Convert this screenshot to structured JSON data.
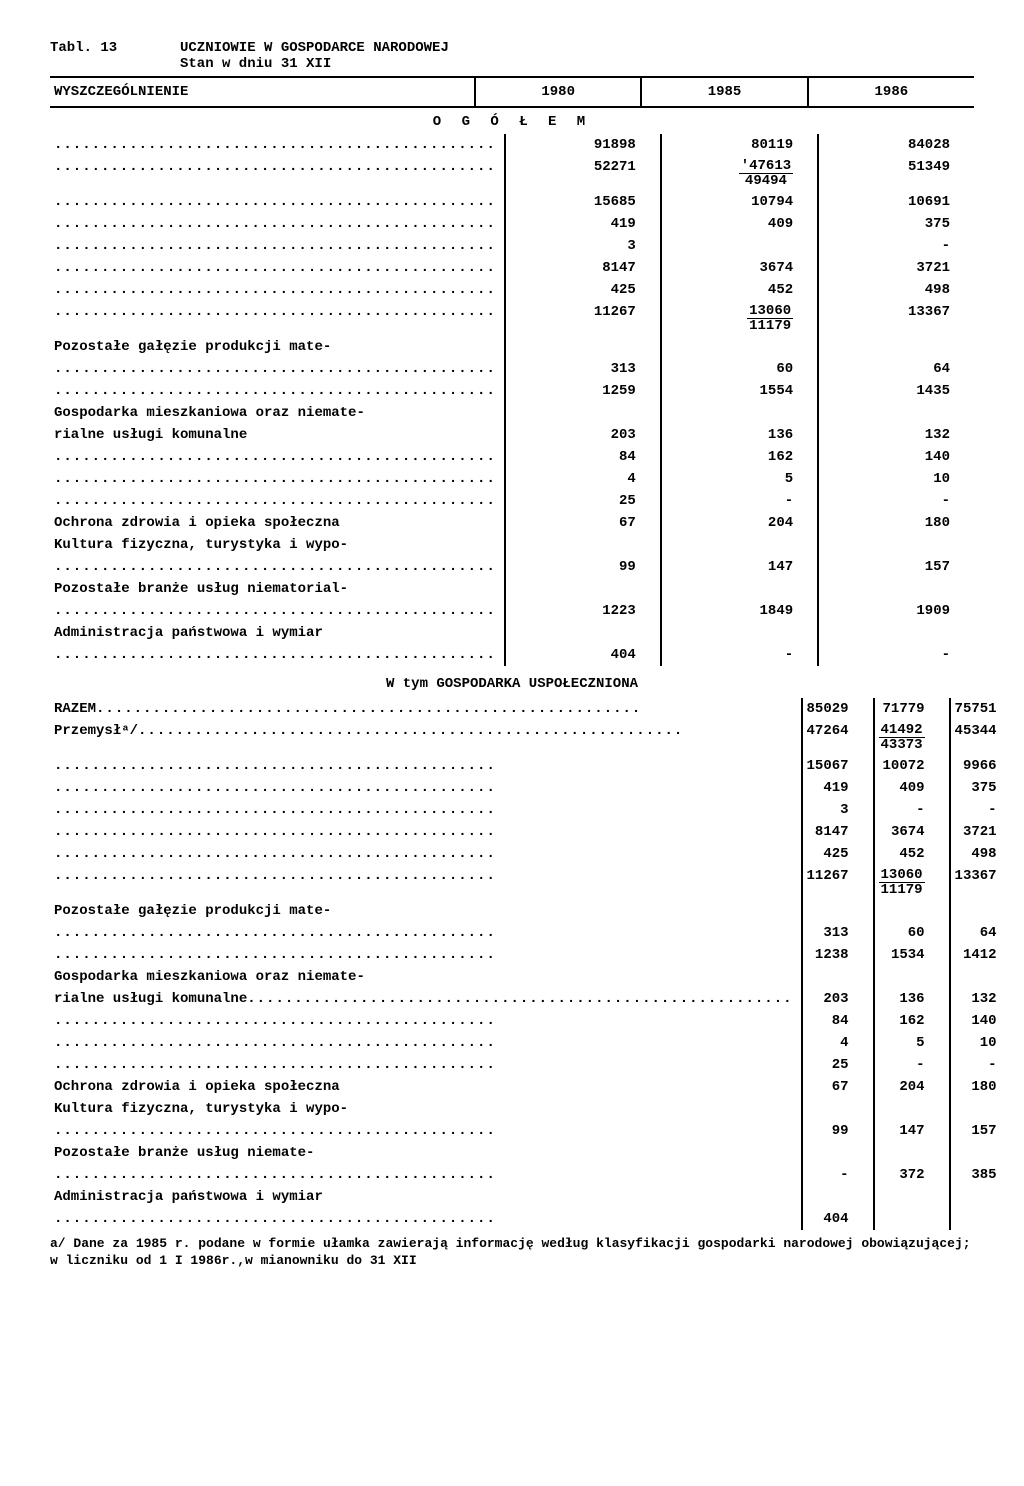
{
  "title_left": "Tabl. 13",
  "title_right_1": "UCZNIOWIE W GOSPODARCE NARODOWEJ",
  "title_right_2": "Stan w dniu 31 XII",
  "columns": [
    "WYSZCZEGÓLNIENIE",
    "1980",
    "1985",
    "1986"
  ],
  "section1": "O G Ó Ł E M",
  "rows1": [
    {
      "label": "",
      "dots": true,
      "v": [
        "91898",
        "80119",
        "84028"
      ]
    },
    {
      "label": "",
      "dots": true,
      "v": [
        "52271",
        {
          "n": "'47613",
          "d": "49494"
        },
        "51349"
      ]
    },
    {
      "label": "",
      "dots": true,
      "v": [
        "15685",
        "10794",
        "10691"
      ]
    },
    {
      "label": "",
      "dots": true,
      "v": [
        "419",
        "409",
        "375"
      ]
    },
    {
      "label": "",
      "dots": true,
      "v": [
        "3",
        "",
        "-"
      ]
    },
    {
      "label": "",
      "dots": true,
      "v": [
        "8147",
        "3674",
        "3721"
      ]
    },
    {
      "label": "",
      "dots": true,
      "v": [
        "425",
        "452",
        "498"
      ]
    },
    {
      "label": "",
      "dots": true,
      "v": [
        "11267",
        {
          "n": "13060",
          "d": "11179"
        },
        "13367"
      ]
    },
    {
      "label": "Pozostałe gałęzie produkcji mate-",
      "dots": false,
      "v": [
        "",
        "",
        ""
      ]
    },
    {
      "label": "",
      "dots": true,
      "v": [
        "313",
        "60",
        "64"
      ]
    },
    {
      "label": "",
      "dots": true,
      "v": [
        "1259",
        "1554",
        "1435"
      ]
    },
    {
      "label": "Gospodarka mieszkaniowa oraz niemate-",
      "dots": false,
      "v": [
        "",
        "",
        ""
      ]
    },
    {
      "label": "rialne usługi komunalne",
      "dots": false,
      "v": [
        "203",
        "136",
        "132"
      ]
    },
    {
      "label": "",
      "dots": true,
      "v": [
        "84",
        "162",
        "140"
      ]
    },
    {
      "label": "",
      "dots": true,
      "v": [
        "4",
        "5",
        "10"
      ]
    },
    {
      "label": "",
      "dots": true,
      "v": [
        "25",
        "-",
        "-"
      ]
    },
    {
      "label": "Ochrona zdrowia i opieka społeczna",
      "dots": false,
      "v": [
        "67",
        "204",
        "180"
      ]
    },
    {
      "label": "Kultura fizyczna, turystyka i wypo-",
      "dots": false,
      "v": [
        "",
        "",
        ""
      ]
    },
    {
      "label": "",
      "dots": true,
      "v": [
        "99",
        "147",
        "157"
      ]
    },
    {
      "label": "Pozostałe branże usług niematorial-",
      "dots": false,
      "v": [
        "",
        "",
        ""
      ]
    },
    {
      "label": "",
      "dots": true,
      "v": [
        "1223",
        "1849",
        "1909"
      ]
    },
    {
      "label": "Administracja państwowa i wymiar",
      "dots": false,
      "v": [
        "",
        "",
        ""
      ]
    },
    {
      "label": "",
      "dots": true,
      "v": [
        "404",
        "-",
        "-"
      ]
    }
  ],
  "section2": "W tym GOSPODARKA USPOŁECZNIONA",
  "rows2": [
    {
      "label": "RAZEM",
      "dots": true,
      "v": [
        "85029",
        "71779",
        "75751"
      ]
    },
    {
      "label": "Przemysłᵃ/",
      "dots": true,
      "v": [
        "47264",
        {
          "n": "41492",
          "d": "43373"
        },
        "45344"
      ]
    },
    {
      "label": "",
      "dots": true,
      "v": [
        "15067",
        "10072",
        "9966"
      ]
    },
    {
      "label": "",
      "dots": true,
      "v": [
        "419",
        "409",
        "375"
      ]
    },
    {
      "label": "",
      "dots": true,
      "v": [
        "3",
        "-",
        "-"
      ]
    },
    {
      "label": "",
      "dots": true,
      "v": [
        "8147",
        "3674",
        "3721"
      ]
    },
    {
      "label": "",
      "dots": true,
      "v": [
        "425",
        "452",
        "498"
      ]
    },
    {
      "label": "",
      "dots": true,
      "v": [
        "11267",
        {
          "n": "13060",
          "d": "11179"
        },
        "13367"
      ]
    },
    {
      "label": "Pozostałe gałęzie produkcji mate-",
      "dots": false,
      "v": [
        "",
        "",
        ""
      ]
    },
    {
      "label": "",
      "dots": true,
      "v": [
        "313",
        "60",
        "64"
      ]
    },
    {
      "label": "",
      "dots": true,
      "v": [
        "1238",
        "1534",
        "1412"
      ]
    },
    {
      "label": "Gospodarka mieszkaniowa oraz niemate-",
      "dots": false,
      "v": [
        "",
        "",
        ""
      ]
    },
    {
      "label": "rialne usługi komunalne",
      "dots": true,
      "v": [
        "203",
        "136",
        "132"
      ]
    },
    {
      "label": "",
      "dots": true,
      "v": [
        "84",
        "162",
        "140"
      ]
    },
    {
      "label": "",
      "dots": true,
      "v": [
        "4",
        "5",
        "10"
      ]
    },
    {
      "label": "",
      "dots": true,
      "v": [
        "25",
        "-",
        "-"
      ]
    },
    {
      "label": "Ochrona zdrowia i opieka społeczna",
      "dots": false,
      "v": [
        "67",
        "204",
        "180"
      ]
    },
    {
      "label": "Kultura fizyczna, turystyka i wypo-",
      "dots": false,
      "v": [
        "",
        "",
        ""
      ]
    },
    {
      "label": "",
      "dots": true,
      "v": [
        "99",
        "147",
        "157"
      ]
    },
    {
      "label": "Pozostałe branże usług niemate-",
      "dots": false,
      "v": [
        "",
        "",
        ""
      ]
    },
    {
      "label": "",
      "dots": true,
      "v": [
        "-",
        "372",
        "385"
      ]
    },
    {
      "label": "Administracja państwowa i wymiar",
      "dots": false,
      "v": [
        "",
        "",
        ""
      ]
    },
    {
      "label": "",
      "dots": true,
      "v": [
        "404",
        "",
        ""
      ]
    }
  ],
  "footnote": "a/ Dane za 1985 r. podane w formie ułamka zawierają informację według klasyfikacji gospodarki narodowej obowiązującej; w liczniku od 1 I 1986r.,w mianowniku do 31 XII"
}
